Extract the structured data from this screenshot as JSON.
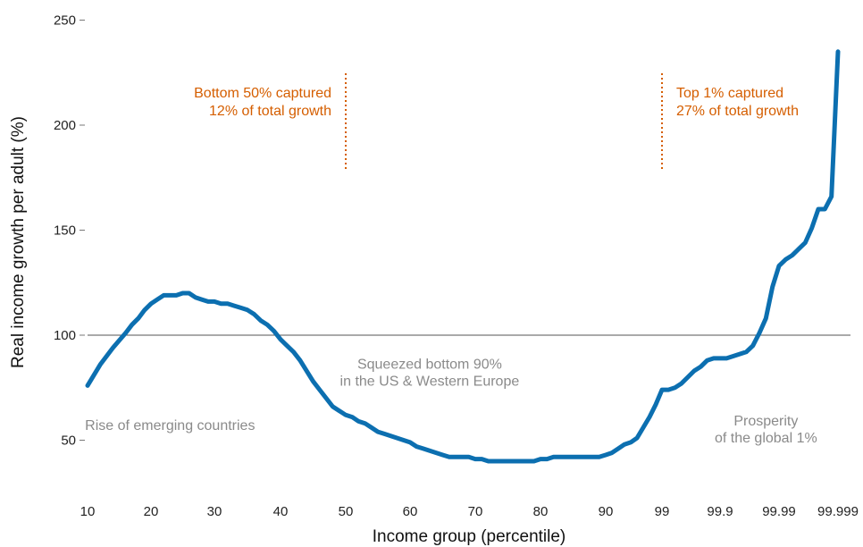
{
  "chart_data": {
    "type": "line",
    "xlabel": "Income group (percentile)",
    "ylabel": "Real income growth per adult (%)",
    "x_tick_labels": [
      "10",
      "20",
      "30",
      "40",
      "50",
      "60",
      "70",
      "80",
      "90",
      "99",
      "99.9",
      "99.99",
      "99.999"
    ],
    "y_ticks": [
      50,
      100,
      150,
      200,
      250
    ],
    "ylim": [
      35,
      255
    ],
    "reference_line_y": 100,
    "grid": false,
    "line_color": "#0c6fb0",
    "annotation_color_orange": "#d55e00",
    "annotation_color_gray": "#8a8a8a",
    "markers": [
      {
        "x": "50",
        "lines": [
          "Bottom 50% captured",
          "12% of total growth"
        ],
        "side": "left"
      },
      {
        "x": "99",
        "lines": [
          "Top 1% captured",
          "27% of total growth"
        ],
        "side": "right"
      }
    ],
    "annotations": [
      {
        "lines": [
          "Rise of emerging countries"
        ],
        "x": 23,
        "y": 55
      },
      {
        "lines": [
          "Squeezed bottom 90%",
          "in the US & Western Europe"
        ],
        "x": 63,
        "y": 84
      },
      {
        "lines": [
          "Prosperity",
          "of the global 1%"
        ],
        "x": 99.97,
        "y": 57
      }
    ],
    "series": [
      {
        "x": [
          10,
          12,
          14,
          16,
          17,
          18,
          19,
          20,
          21,
          22,
          23,
          24,
          25,
          26,
          27,
          28,
          29,
          30,
          31,
          32,
          33,
          34,
          35,
          36,
          37,
          38,
          39,
          40,
          41,
          42,
          43,
          44,
          45,
          46,
          47,
          48,
          49,
          50,
          51,
          52,
          53,
          54,
          55,
          56,
          57,
          58,
          59,
          60,
          61,
          62,
          63,
          64,
          65,
          66,
          67,
          68,
          69,
          70,
          71,
          72,
          73,
          74,
          75,
          76,
          77,
          78,
          79,
          80,
          81,
          82,
          83,
          84,
          85,
          86,
          87,
          88,
          89,
          90,
          91,
          92,
          93,
          94,
          95,
          96,
          97,
          98,
          99,
          99.1,
          99.2,
          99.3,
          99.4,
          99.5,
          99.6,
          99.7,
          99.8,
          99.9,
          99.91,
          99.92,
          99.93,
          99.94,
          99.95,
          99.96,
          99.97,
          99.98,
          99.99,
          99.991,
          99.992,
          99.993,
          99.994,
          99.995,
          99.996,
          99.997,
          99.998,
          99.999
        ],
        "y": [
          76,
          86,
          94,
          101,
          105,
          108,
          112,
          115,
          117,
          119,
          119,
          119,
          120,
          120,
          118,
          117,
          116,
          116,
          115,
          115,
          114,
          113,
          112,
          110,
          107,
          105,
          102,
          98,
          95,
          92,
          88,
          83,
          78,
          74,
          70,
          66,
          64,
          62,
          61,
          59,
          58,
          56,
          54,
          53,
          52,
          51,
          50,
          49,
          47,
          46,
          45,
          44,
          43,
          42,
          42,
          42,
          42,
          41,
          41,
          40,
          40,
          40,
          40,
          40,
          40,
          40,
          40,
          41,
          41,
          42,
          42,
          42,
          42,
          42,
          42,
          42,
          42,
          43,
          44,
          46,
          48,
          49,
          51,
          56,
          61,
          67,
          74,
          74,
          75,
          77,
          80,
          83,
          85,
          88,
          89,
          89,
          89,
          90,
          91,
          92,
          95,
          101,
          108,
          123,
          133,
          136,
          138,
          141,
          144,
          151,
          160,
          160,
          166,
          235
        ]
      }
    ]
  }
}
